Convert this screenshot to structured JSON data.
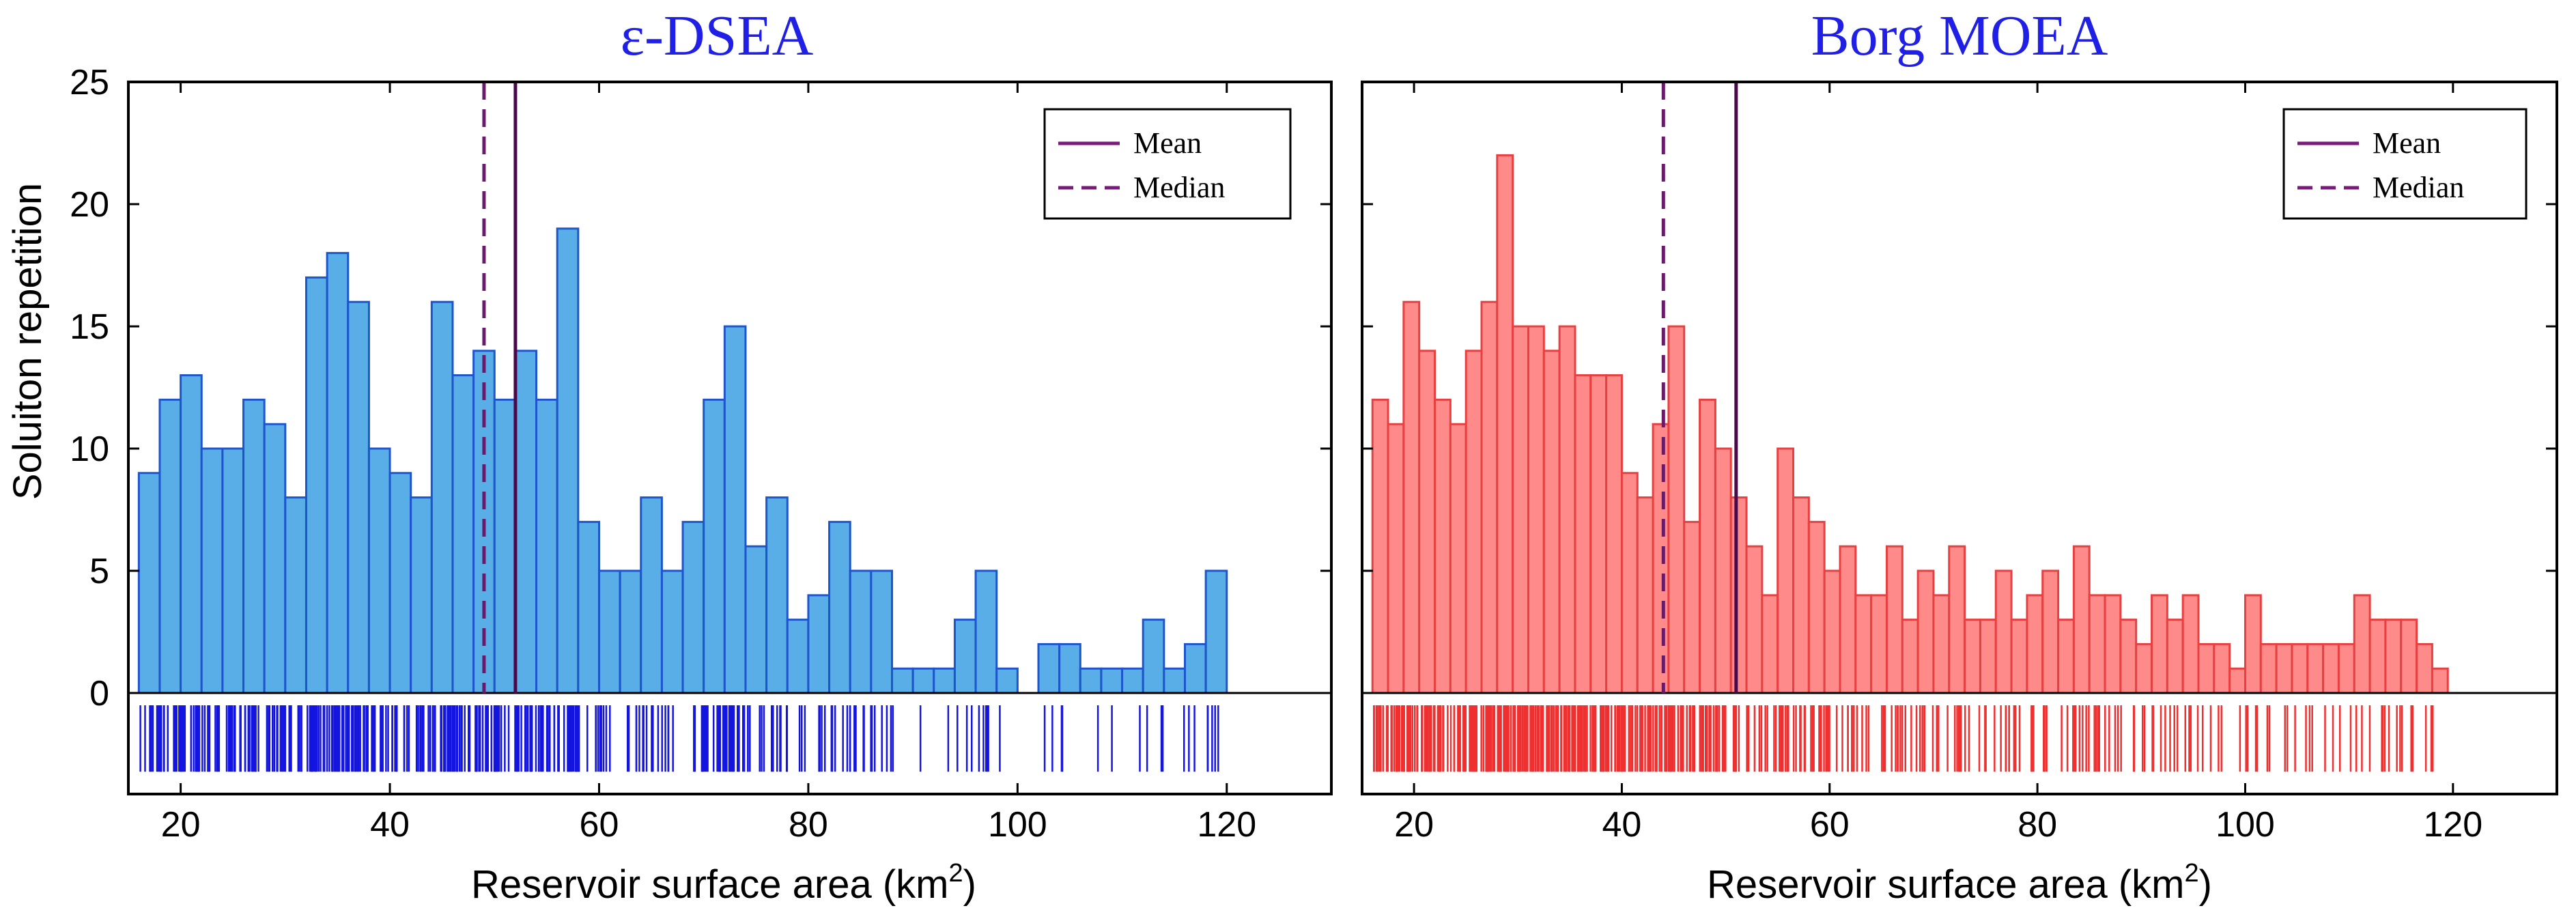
{
  "figure": {
    "y_axis_label": "Soluiton repetition",
    "x_axis_label": "Reservoir surface area (km",
    "x_axis_superscript": "2",
    "x_axis_label_close": ")"
  },
  "legend": {
    "mean_label": "Mean",
    "median_label": "Median"
  },
  "chart_data": [
    {
      "type": "bar",
      "title": "ε-DSEA",
      "title_color": "#1f1fe6",
      "bar_color": "#5aaee8",
      "bar_edge_color": "#1c55cc",
      "rug_color": "#1515e0",
      "xlabel": "Reservoir surface area (km2)",
      "ylabel": "Soluiton repetition",
      "xlim": [
        15,
        130
      ],
      "ylim": [
        0,
        25
      ],
      "rug_ylim": [
        -3.5,
        0
      ],
      "x_ticks": [
        "20",
        "40",
        "60",
        "80",
        "100",
        "120"
      ],
      "y_ticks": [
        "0",
        "5",
        "10",
        "15",
        "20",
        "25"
      ],
      "bin_start": 16,
      "bin_width": 2,
      "values": [
        9,
        12,
        13,
        10,
        10,
        12,
        11,
        8,
        17,
        18,
        16,
        10,
        9,
        8,
        16,
        13,
        14,
        12,
        14,
        12,
        19,
        7,
        5,
        5,
        8,
        5,
        7,
        12,
        15,
        6,
        8,
        3,
        4,
        7,
        5,
        5,
        1,
        1,
        1,
        3,
        5,
        1,
        0,
        2,
        2,
        1,
        1,
        1,
        3,
        1,
        2,
        5
      ],
      "mean": 52,
      "median": 49,
      "mean_color": "#4a0a4a",
      "median_color": "#6a1a6a",
      "legend_position": "top-right"
    },
    {
      "type": "bar",
      "title": "Borg MOEA",
      "title_color": "#1f1fe6",
      "bar_color": "#ff8a8a",
      "bar_edge_color": "#e84040",
      "rug_color": "#ee3030",
      "xlabel": "Reservoir surface area (km2)",
      "ylabel": "",
      "xlim": [
        15,
        130
      ],
      "ylim": [
        0,
        25
      ],
      "rug_ylim": [
        -3.5,
        0
      ],
      "x_ticks": [
        "20",
        "40",
        "60",
        "80",
        "100",
        "120"
      ],
      "y_ticks": [],
      "bin_start": 16,
      "bin_width": 1.5,
      "values": [
        12,
        11,
        16,
        14,
        12,
        11,
        14,
        16,
        22,
        15,
        15,
        14,
        15,
        13,
        13,
        13,
        9,
        8,
        11,
        15,
        7,
        12,
        10,
        8,
        6,
        4,
        10,
        8,
        7,
        5,
        6,
        4,
        4,
        6,
        3,
        5,
        4,
        6,
        3,
        3,
        5,
        3,
        4,
        5,
        3,
        6,
        4,
        4,
        3,
        2,
        4,
        3,
        4,
        2,
        2,
        1,
        4,
        2,
        2,
        2,
        2,
        2,
        2,
        4,
        3,
        3,
        3,
        2,
        1
      ],
      "mean": 51,
      "median": 44,
      "mean_color": "#4a0a4a",
      "median_color": "#6a1a6a",
      "legend_position": "top-right"
    }
  ]
}
